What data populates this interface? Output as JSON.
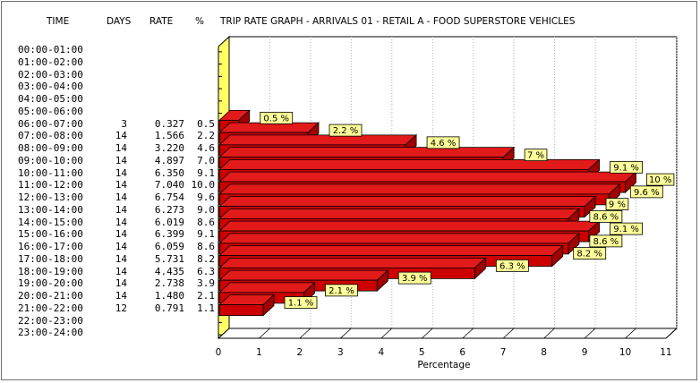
{
  "headers": {
    "time": "TIME",
    "days": "DAYS",
    "rate": "RATE",
    "pct": "%",
    "title": "TRIP RATE GRAPH - ARRIVALS   01 - RETAIL  A - FOOD SUPERSTORE     VEHICLES"
  },
  "table": [
    {
      "time": "00:00-01:00",
      "days": "",
      "rate": "",
      "pct": ""
    },
    {
      "time": "01:00-02:00",
      "days": "",
      "rate": "",
      "pct": ""
    },
    {
      "time": "02:00-03:00",
      "days": "",
      "rate": "",
      "pct": ""
    },
    {
      "time": "03:00-04:00",
      "days": "",
      "rate": "",
      "pct": ""
    },
    {
      "time": "04:00-05:00",
      "days": "",
      "rate": "",
      "pct": ""
    },
    {
      "time": "05:00-06:00",
      "days": "",
      "rate": "",
      "pct": ""
    },
    {
      "time": "06:00-07:00",
      "days": "3",
      "rate": "0.327",
      "pct": "0.5"
    },
    {
      "time": "07:00-08:00",
      "days": "14",
      "rate": "1.566",
      "pct": "2.2"
    },
    {
      "time": "08:00-09:00",
      "days": "14",
      "rate": "3.220",
      "pct": "4.6"
    },
    {
      "time": "09:00-10:00",
      "days": "14",
      "rate": "4.897",
      "pct": "7.0"
    },
    {
      "time": "10:00-11:00",
      "days": "14",
      "rate": "6.350",
      "pct": "9.1"
    },
    {
      "time": "11:00-12:00",
      "days": "14",
      "rate": "7.040",
      "pct": "10.0"
    },
    {
      "time": "12:00-13:00",
      "days": "14",
      "rate": "6.754",
      "pct": "9.6"
    },
    {
      "time": "13:00-14:00",
      "days": "14",
      "rate": "6.273",
      "pct": "9.0"
    },
    {
      "time": "14:00-15:00",
      "days": "14",
      "rate": "6.019",
      "pct": "8.6"
    },
    {
      "time": "15:00-16:00",
      "days": "14",
      "rate": "6.399",
      "pct": "9.1"
    },
    {
      "time": "16:00-17:00",
      "days": "14",
      "rate": "6.059",
      "pct": "8.6"
    },
    {
      "time": "17:00-18:00",
      "days": "14",
      "rate": "5.731",
      "pct": "8.2"
    },
    {
      "time": "18:00-19:00",
      "days": "14",
      "rate": "4.435",
      "pct": "6.3"
    },
    {
      "time": "19:00-20:00",
      "days": "14",
      "rate": "2.738",
      "pct": "3.9"
    },
    {
      "time": "20:00-21:00",
      "days": "14",
      "rate": "1.480",
      "pct": "2.1"
    },
    {
      "time": "21:00-22:00",
      "days": "12",
      "rate": "0.791",
      "pct": "1.1"
    },
    {
      "time": "22:00-23:00",
      "days": "",
      "rate": "",
      "pct": ""
    },
    {
      "time": "23:00-24:00",
      "days": "",
      "rate": "",
      "pct": ""
    }
  ],
  "chart_data": {
    "type": "bar",
    "orientation": "horizontal",
    "categories": [
      "00:00-01:00",
      "01:00-02:00",
      "02:00-03:00",
      "03:00-04:00",
      "04:00-05:00",
      "05:00-06:00",
      "06:00-07:00",
      "07:00-08:00",
      "08:00-09:00",
      "09:00-10:00",
      "10:00-11:00",
      "11:00-12:00",
      "12:00-13:00",
      "13:00-14:00",
      "14:00-15:00",
      "15:00-16:00",
      "16:00-17:00",
      "17:00-18:00",
      "18:00-19:00",
      "19:00-20:00",
      "20:00-21:00",
      "21:00-22:00",
      "22:00-23:00",
      "23:00-24:00"
    ],
    "values": [
      null,
      null,
      null,
      null,
      null,
      null,
      0.5,
      2.2,
      4.6,
      7.0,
      9.1,
      10.0,
      9.6,
      9.0,
      8.6,
      9.1,
      8.6,
      8.2,
      6.3,
      3.9,
      2.1,
      1.1,
      null,
      null
    ],
    "data_labels": [
      "",
      "",
      "",
      "",
      "",
      "",
      "0.5 %",
      "2.2 %",
      "4.6 %",
      "7 %",
      "9.1 %",
      "10 %",
      "9.6 %",
      "9 %",
      "8.6 %",
      "9.1 %",
      "8.6 %",
      "8.2 %",
      "6.3 %",
      "3.9 %",
      "2.1 %",
      "1.1 %",
      "",
      ""
    ],
    "title": "TRIP RATE GRAPH - ARRIVALS   01 - RETAIL  A - FOOD SUPERSTORE     VEHICLES",
    "xlabel": "Percentage",
    "ylabel": "",
    "xlim": [
      0,
      11
    ],
    "xticks": [
      "0",
      "1",
      "2",
      "3",
      "4",
      "5",
      "6",
      "7",
      "8",
      "9",
      "10",
      "11"
    ],
    "grid": "vertical dotted",
    "style": "3d",
    "colors": {
      "bar": "#cc0000",
      "bar_top": "#e21a1a",
      "bar_outline": "#000000",
      "wall": "#ffff66",
      "label_bg": "#ffff99",
      "grid": "#b4b4b4"
    }
  }
}
